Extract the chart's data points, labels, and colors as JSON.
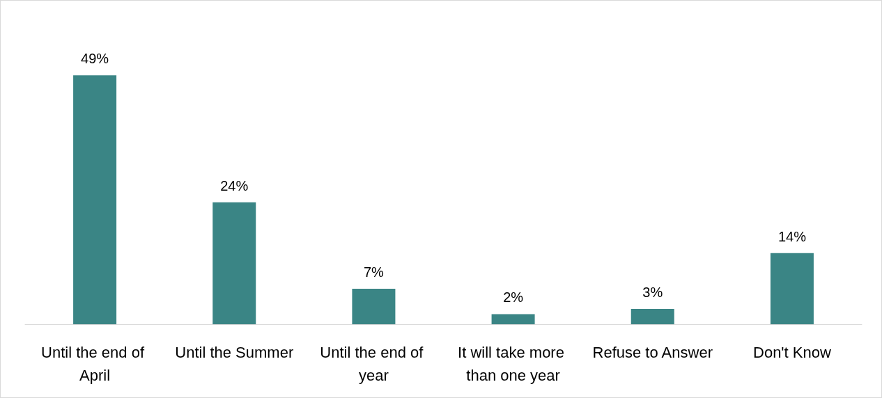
{
  "chart_data": {
    "type": "bar",
    "categories": [
      "Until the end of April",
      "Until the Summer",
      "Until the end of year",
      "It will take more than one year",
      "Refuse to Answer",
      "Don't Know"
    ],
    "values": [
      49,
      24,
      7,
      2,
      3,
      14
    ],
    "value_labels": [
      "49%",
      "24%",
      "7%",
      "2%",
      "3%",
      "14%"
    ],
    "color": "#3a8585"
  }
}
